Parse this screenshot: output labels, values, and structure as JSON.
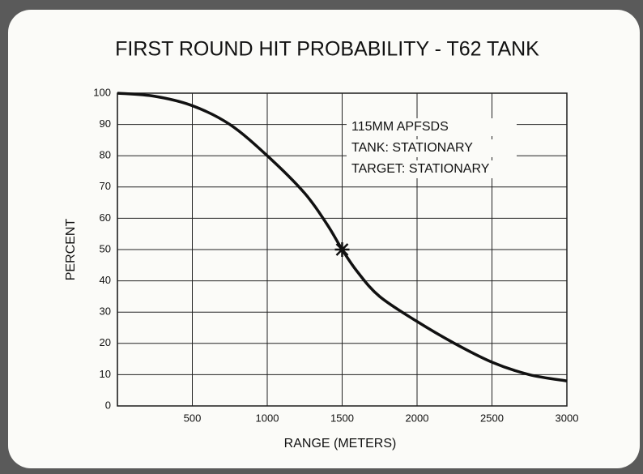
{
  "chart_data": {
    "type": "line",
    "title": "FIRST ROUND HIT PROBABILITY - T62 TANK",
    "xlabel": "RANGE (METERS)",
    "ylabel": "PERCENT",
    "annotations": [
      "115MM APFSDS",
      "TANK:  STATIONARY",
      "TARGET:  STATIONARY"
    ],
    "x": [
      0,
      250,
      500,
      750,
      1000,
      1250,
      1400,
      1500,
      1600,
      1750,
      2000,
      2250,
      2500,
      2750,
      3000
    ],
    "series": [
      {
        "color": "#111111",
        "values": [
          100,
          99,
          96,
          90,
          80,
          68,
          58,
          50,
          43,
          35,
          27,
          20,
          14,
          10,
          8
        ]
      }
    ],
    "highlight": {
      "x": 1500,
      "y": 50
    },
    "xlim": [
      0,
      3000
    ],
    "xticks": [
      500,
      1000,
      1500,
      2000,
      2500,
      3000
    ],
    "ylim": [
      0,
      100
    ],
    "yticks": [
      0,
      10,
      20,
      30,
      40,
      50,
      60,
      70,
      80,
      90,
      100
    ],
    "grid": true
  }
}
